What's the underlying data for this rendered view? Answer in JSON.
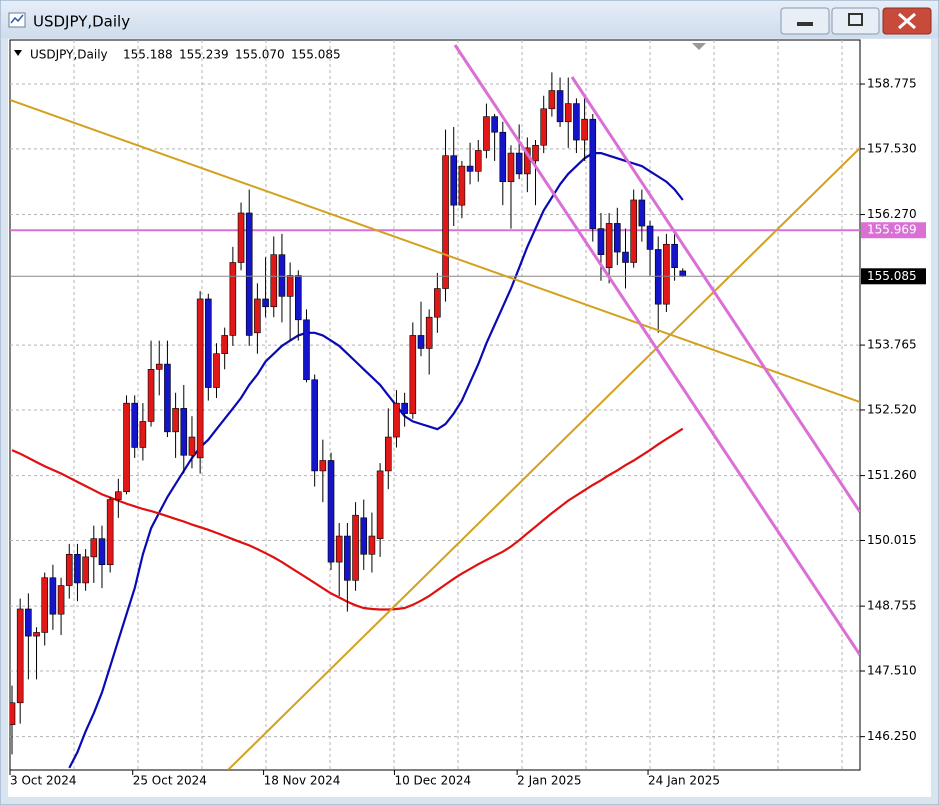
{
  "window_title": "USDJPY,Daily",
  "header": {
    "symbol": "USDJPY,Daily",
    "ohlc": [
      "155.188",
      "155.239",
      "155.070",
      "155.085"
    ]
  },
  "chart_data": {
    "type": "candlestick",
    "categories": [
      "3 Oct 2024",
      null,
      null,
      null,
      null,
      null,
      null,
      null,
      null,
      null,
      null,
      null,
      null,
      null,
      null,
      "25 Oct 2024",
      null,
      null,
      null,
      null,
      null,
      null,
      null,
      null,
      null,
      null,
      null,
      null,
      null,
      null,
      null,
      "18 Nov 2024",
      null,
      null,
      null,
      null,
      null,
      null,
      null,
      null,
      null,
      null,
      null,
      null,
      null,
      null,
      null,
      "10 Dec 2024",
      null,
      null,
      null,
      null,
      null,
      null,
      null,
      null,
      null,
      null,
      null,
      null,
      null,
      null,
      "2 Jan 2025",
      null,
      null,
      null,
      null,
      null,
      null,
      null,
      null,
      null,
      null,
      null,
      null,
      null,
      null,
      null,
      "24 Jan 2025",
      null,
      null,
      null,
      null
    ],
    "open": [
      146.48,
      146.9,
      148.7,
      148.18,
      148.25,
      149.3,
      148.6,
      149.15,
      149.75,
      149.2,
      149.7,
      150.05,
      149.55,
      150.8,
      150.95,
      152.65,
      151.8,
      152.3,
      153.3,
      153.4,
      152.1,
      152.55,
      151.65,
      151.6,
      154.65,
      152.95,
      153.6,
      153.95,
      155.35,
      156.3,
      154.0,
      154.65,
      154.5,
      155.5,
      154.7,
      155.1,
      154.25,
      153.1,
      151.35,
      151.55,
      149.6,
      150.1,
      149.25,
      150.45,
      149.75,
      150.05,
      151.35,
      152.0,
      152.65,
      152.45,
      153.95,
      153.7,
      154.3,
      154.85,
      157.4,
      156.45,
      157.2,
      157.1,
      157.5,
      158.15,
      157.85,
      156.9,
      157.45,
      157.05,
      157.3,
      157.6,
      158.3,
      158.65,
      158.05,
      158.4,
      157.7,
      158.1,
      156.0,
      155.25,
      156.1,
      155.55,
      155.35,
      156.55,
      156.05,
      155.6,
      154.55,
      155.7,
      155.188
    ],
    "high": [
      147.23,
      148.9,
      149.0,
      148.35,
      149.4,
      149.55,
      149.3,
      149.95,
      149.95,
      149.85,
      150.3,
      150.3,
      150.85,
      151.2,
      152.8,
      152.8,
      152.65,
      153.85,
      153.85,
      153.85,
      152.85,
      153.0,
      152.4,
      154.8,
      154.75,
      153.8,
      154.1,
      155.65,
      156.5,
      156.75,
      154.95,
      155.45,
      155.85,
      155.9,
      155.35,
      155.2,
      154.45,
      153.2,
      151.95,
      151.7,
      150.35,
      150.35,
      150.75,
      150.8,
      150.55,
      151.5,
      152.55,
      152.9,
      152.85,
      154.2,
      154.6,
      154.45,
      155.15,
      157.9,
      157.95,
      157.3,
      157.65,
      157.7,
      158.4,
      158.2,
      158.05,
      157.6,
      158.0,
      157.75,
      157.7,
      158.55,
      159.0,
      158.9,
      158.9,
      158.5,
      158.55,
      158.2,
      156.3,
      156.3,
      156.4,
      156.0,
      156.75,
      156.75,
      156.15,
      155.85,
      155.9,
      155.95,
      155.239
    ],
    "low": [
      145.91,
      146.5,
      147.35,
      147.35,
      148.0,
      148.3,
      148.2,
      148.9,
      148.85,
      149.05,
      149.2,
      149.1,
      149.4,
      150.45,
      150.9,
      151.6,
      151.55,
      152.2,
      152.8,
      152.0,
      151.6,
      151.3,
      151.4,
      151.3,
      152.7,
      152.75,
      153.3,
      153.75,
      155.2,
      153.75,
      153.6,
      154.3,
      154.3,
      154.2,
      153.85,
      153.85,
      153.05,
      151.05,
      150.75,
      149.45,
      148.95,
      148.65,
      149.05,
      149.45,
      149.4,
      149.7,
      151.0,
      151.8,
      152.2,
      152.35,
      153.55,
      153.2,
      154.0,
      154.6,
      156.05,
      156.2,
      156.85,
      156.9,
      157.35,
      157.3,
      156.45,
      156.0,
      156.95,
      156.7,
      156.45,
      157.45,
      158.15,
      157.95,
      157.55,
      157.45,
      157.3,
      155.75,
      155.0,
      154.95,
      155.3,
      154.85,
      155.25,
      155.75,
      155.1,
      154.0,
      154.4,
      155.0,
      155.07
    ],
    "close": [
      146.9,
      148.7,
      148.18,
      148.25,
      149.3,
      148.6,
      149.15,
      149.75,
      149.2,
      149.7,
      150.05,
      149.55,
      150.8,
      150.95,
      152.65,
      151.8,
      152.3,
      153.3,
      153.4,
      152.1,
      152.55,
      151.65,
      152.0,
      154.65,
      152.95,
      153.6,
      153.95,
      155.35,
      156.3,
      153.95,
      154.65,
      154.5,
      155.5,
      154.7,
      155.1,
      154.25,
      153.1,
      151.35,
      151.55,
      149.6,
      150.1,
      149.25,
      150.5,
      149.75,
      150.1,
      151.35,
      152.0,
      152.65,
      152.45,
      153.95,
      153.7,
      154.3,
      154.85,
      157.4,
      156.45,
      157.2,
      157.1,
      157.5,
      158.15,
      157.85,
      156.9,
      157.45,
      157.05,
      157.55,
      157.6,
      158.3,
      158.65,
      158.05,
      158.4,
      157.7,
      158.1,
      156.0,
      155.5,
      156.1,
      155.55,
      155.35,
      156.55,
      156.05,
      155.6,
      154.55,
      155.7,
      155.25,
      155.085
    ],
    "up_color": "#e01818",
    "down_color": "#1414c8",
    "lines": [
      {
        "color": "#0a0ab4",
        "values": [
          null,
          null,
          null,
          null,
          null,
          null,
          null,
          145.65,
          145.95,
          146.35,
          146.7,
          147.1,
          147.6,
          148.1,
          148.6,
          149.1,
          149.75,
          150.25,
          150.55,
          150.85,
          151.1,
          151.35,
          151.6,
          151.8,
          151.95,
          152.15,
          152.35,
          152.55,
          152.75,
          153.0,
          153.2,
          153.45,
          153.6,
          153.75,
          153.85,
          153.95,
          154.0,
          154.0,
          153.95,
          153.85,
          153.75,
          153.6,
          153.45,
          153.3,
          153.15,
          153.0,
          152.8,
          152.6,
          152.4,
          152.3,
          152.25,
          152.2,
          152.15,
          152.25,
          152.45,
          152.7,
          153.05,
          153.4,
          153.8,
          154.15,
          154.5,
          154.85,
          155.25,
          155.65,
          156.0,
          156.35,
          156.6,
          156.85,
          157.05,
          157.2,
          157.35,
          157.45,
          157.45,
          157.4,
          157.35,
          157.3,
          157.25,
          157.2,
          157.1,
          157.0,
          156.9,
          156.75,
          156.55
        ]
      },
      {
        "color": "#e01010",
        "values": [
          151.75,
          151.68,
          151.6,
          151.52,
          151.44,
          151.37,
          151.3,
          151.22,
          151.14,
          151.06,
          150.98,
          150.9,
          150.84,
          150.78,
          150.72,
          150.67,
          150.62,
          150.58,
          150.53,
          150.48,
          150.43,
          150.38,
          150.32,
          150.27,
          150.22,
          150.16,
          150.1,
          150.04,
          149.98,
          149.92,
          149.85,
          149.77,
          149.69,
          149.6,
          149.5,
          149.4,
          149.3,
          149.2,
          149.1,
          149.0,
          148.92,
          148.84,
          148.77,
          148.72,
          148.7,
          148.69,
          148.69,
          148.7,
          148.72,
          148.78,
          148.86,
          148.95,
          149.06,
          149.17,
          149.28,
          149.38,
          149.47,
          149.56,
          149.64,
          149.72,
          149.8,
          149.9,
          150.02,
          150.15,
          150.28,
          150.41,
          150.54,
          150.66,
          150.78,
          150.88,
          150.98,
          151.08,
          151.17,
          151.27,
          151.36,
          151.46,
          151.55,
          151.65,
          151.75,
          151.86,
          151.96,
          152.06,
          152.16
        ]
      }
    ],
    "hlines": [
      {
        "value": 155.969,
        "color": "#da70d6"
      }
    ],
    "ylim": [
      145.61,
      159.62
    ],
    "yticks": [
      {
        "value": 146.25,
        "label": "146.250"
      },
      {
        "value": 147.51,
        "label": "147.510"
      },
      148.755,
      150.015,
      {
        "value": 151.26,
        "label": "151.260"
      },
      {
        "value": 152.52,
        "label": "152.520"
      },
      153.765,
      {
        "value": 156.27,
        "label": "156.270"
      },
      {
        "value": 157.53,
        "label": "157.530"
      },
      158.775
    ],
    "grid": true
  }
}
